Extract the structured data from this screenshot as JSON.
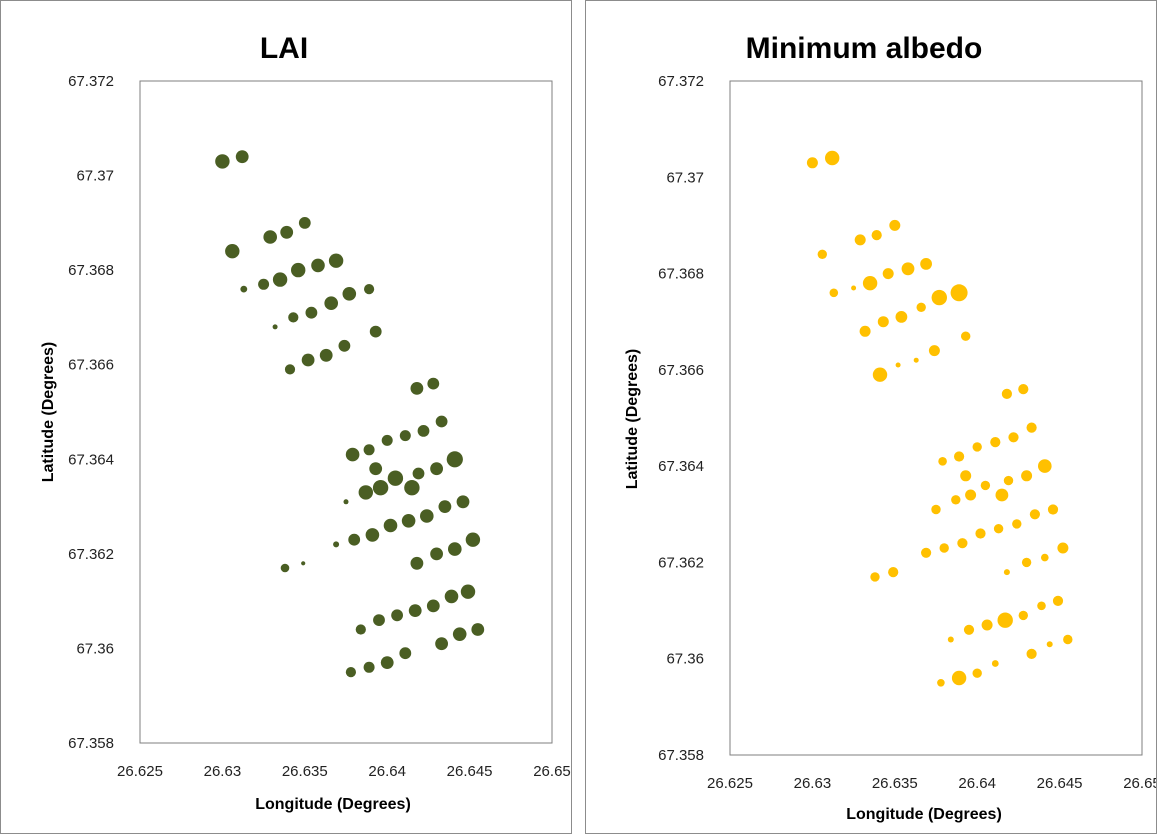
{
  "chart_data": [
    {
      "type": "scatter",
      "title": "LAI",
      "xlabel": "Longitude (Degrees)",
      "ylabel": "Latitude (Degrees)",
      "xlim": [
        26.625,
        26.65
      ],
      "ylim": [
        67.358,
        67.372
      ],
      "xticks": [
        "26.625",
        "26.63",
        "26.635",
        "26.64",
        "26.645",
        "26.65"
      ],
      "yticks": [
        "67.358",
        "67.36",
        "67.362",
        "67.364",
        "67.366",
        "67.368",
        "67.37",
        "67.372"
      ],
      "grid": false,
      "color": "#4a5e23",
      "points": [
        {
          "x": 26.63,
          "y": 67.3703,
          "size": 0.85
        },
        {
          "x": 26.6312,
          "y": 67.3704,
          "size": 0.75
        },
        {
          "x": 26.6306,
          "y": 67.3684,
          "size": 0.85
        },
        {
          "x": 26.6329,
          "y": 67.3687,
          "size": 0.8
        },
        {
          "x": 26.6339,
          "y": 67.3688,
          "size": 0.75
        },
        {
          "x": 26.635,
          "y": 67.369,
          "size": 0.7
        },
        {
          "x": 26.6313,
          "y": 67.3676,
          "size": 0.4
        },
        {
          "x": 26.6325,
          "y": 67.3677,
          "size": 0.65
        },
        {
          "x": 26.6335,
          "y": 67.3678,
          "size": 0.85
        },
        {
          "x": 26.6346,
          "y": 67.368,
          "size": 0.85
        },
        {
          "x": 26.6358,
          "y": 67.3681,
          "size": 0.8
        },
        {
          "x": 26.6369,
          "y": 67.3682,
          "size": 0.85
        },
        {
          "x": 26.6332,
          "y": 67.3668,
          "size": 0.3
        },
        {
          "x": 26.6343,
          "y": 67.367,
          "size": 0.6
        },
        {
          "x": 26.6354,
          "y": 67.3671,
          "size": 0.7
        },
        {
          "x": 26.6366,
          "y": 67.3673,
          "size": 0.8
        },
        {
          "x": 26.6377,
          "y": 67.3675,
          "size": 0.8
        },
        {
          "x": 26.6389,
          "y": 67.3676,
          "size": 0.6
        },
        {
          "x": 26.6393,
          "y": 67.3667,
          "size": 0.7
        },
        {
          "x": 26.6341,
          "y": 67.3659,
          "size": 0.6
        },
        {
          "x": 26.6352,
          "y": 67.3661,
          "size": 0.75
        },
        {
          "x": 26.6363,
          "y": 67.3662,
          "size": 0.75
        },
        {
          "x": 26.6374,
          "y": 67.3664,
          "size": 0.7
        },
        {
          "x": 26.6418,
          "y": 67.3655,
          "size": 0.75
        },
        {
          "x": 26.6428,
          "y": 67.3656,
          "size": 0.7
        },
        {
          "x": 26.6379,
          "y": 67.3641,
          "size": 0.8
        },
        {
          "x": 26.6389,
          "y": 67.3642,
          "size": 0.65
        },
        {
          "x": 26.64,
          "y": 67.3644,
          "size": 0.65
        },
        {
          "x": 26.6411,
          "y": 67.3645,
          "size": 0.65
        },
        {
          "x": 26.6422,
          "y": 67.3646,
          "size": 0.7
        },
        {
          "x": 26.6433,
          "y": 67.3648,
          "size": 0.7
        },
        {
          "x": 26.6393,
          "y": 67.3638,
          "size": 0.75
        },
        {
          "x": 26.6419,
          "y": 67.3637,
          "size": 0.7
        },
        {
          "x": 26.643,
          "y": 67.3638,
          "size": 0.75
        },
        {
          "x": 26.6441,
          "y": 67.364,
          "size": 0.95
        },
        {
          "x": 26.6375,
          "y": 67.3631,
          "size": 0.3
        },
        {
          "x": 26.6387,
          "y": 67.3633,
          "size": 0.85
        },
        {
          "x": 26.6396,
          "y": 67.3634,
          "size": 0.9
        },
        {
          "x": 26.6405,
          "y": 67.3636,
          "size": 0.9
        },
        {
          "x": 26.6415,
          "y": 67.3634,
          "size": 0.9
        },
        {
          "x": 26.6369,
          "y": 67.3622,
          "size": 0.35
        },
        {
          "x": 26.638,
          "y": 67.3623,
          "size": 0.7
        },
        {
          "x": 26.6391,
          "y": 67.3624,
          "size": 0.8
        },
        {
          "x": 26.6402,
          "y": 67.3626,
          "size": 0.8
        },
        {
          "x": 26.6413,
          "y": 67.3627,
          "size": 0.8
        },
        {
          "x": 26.6424,
          "y": 67.3628,
          "size": 0.8
        },
        {
          "x": 26.6435,
          "y": 67.363,
          "size": 0.75
        },
        {
          "x": 26.6446,
          "y": 67.3631,
          "size": 0.75
        },
        {
          "x": 26.6418,
          "y": 67.3618,
          "size": 0.75
        },
        {
          "x": 26.643,
          "y": 67.362,
          "size": 0.75
        },
        {
          "x": 26.6441,
          "y": 67.3621,
          "size": 0.8
        },
        {
          "x": 26.6452,
          "y": 67.3623,
          "size": 0.85
        },
        {
          "x": 26.6338,
          "y": 67.3617,
          "size": 0.5
        },
        {
          "x": 26.6349,
          "y": 67.3618,
          "size": 0.25
        },
        {
          "x": 26.6384,
          "y": 67.3604,
          "size": 0.6
        },
        {
          "x": 26.6395,
          "y": 67.3606,
          "size": 0.7
        },
        {
          "x": 26.6406,
          "y": 67.3607,
          "size": 0.7
        },
        {
          "x": 26.6417,
          "y": 67.3608,
          "size": 0.75
        },
        {
          "x": 26.6428,
          "y": 67.3609,
          "size": 0.75
        },
        {
          "x": 26.6439,
          "y": 67.3611,
          "size": 0.8
        },
        {
          "x": 26.6449,
          "y": 67.3612,
          "size": 0.85
        },
        {
          "x": 26.6378,
          "y": 67.3595,
          "size": 0.6
        },
        {
          "x": 26.6389,
          "y": 67.3596,
          "size": 0.65
        },
        {
          "x": 26.64,
          "y": 67.3597,
          "size": 0.75
        },
        {
          "x": 26.6411,
          "y": 67.3599,
          "size": 0.7
        },
        {
          "x": 26.6433,
          "y": 67.3601,
          "size": 0.75
        },
        {
          "x": 26.6444,
          "y": 67.3603,
          "size": 0.8
        },
        {
          "x": 26.6455,
          "y": 67.3604,
          "size": 0.75
        }
      ]
    },
    {
      "type": "scatter",
      "title": "Minimum albedo",
      "xlabel": "Longitude (Degrees)",
      "ylabel": "Latitude (Degrees)",
      "xlim": [
        26.625,
        26.65
      ],
      "ylim": [
        67.358,
        67.372
      ],
      "xticks": [
        "26.625",
        "26.63",
        "26.635",
        "26.64",
        "26.645",
        "26.65"
      ],
      "yticks": [
        "67.358",
        "67.36",
        "67.362",
        "67.364",
        "67.366",
        "67.368",
        "67.37",
        "67.372"
      ],
      "grid": false,
      "color": "#ffc000",
      "points": [
        {
          "x": 26.63,
          "y": 67.3703,
          "size": 0.65
        },
        {
          "x": 26.6312,
          "y": 67.3704,
          "size": 0.85
        },
        {
          "x": 26.6306,
          "y": 67.3684,
          "size": 0.55
        },
        {
          "x": 26.6329,
          "y": 67.3687,
          "size": 0.65
        },
        {
          "x": 26.6339,
          "y": 67.3688,
          "size": 0.6
        },
        {
          "x": 26.635,
          "y": 67.369,
          "size": 0.65
        },
        {
          "x": 26.6313,
          "y": 67.3676,
          "size": 0.5
        },
        {
          "x": 26.6325,
          "y": 67.3677,
          "size": 0.3
        },
        {
          "x": 26.6335,
          "y": 67.3678,
          "size": 0.85
        },
        {
          "x": 26.6346,
          "y": 67.368,
          "size": 0.65
        },
        {
          "x": 26.6358,
          "y": 67.3681,
          "size": 0.75
        },
        {
          "x": 26.6369,
          "y": 67.3682,
          "size": 0.7
        },
        {
          "x": 26.6332,
          "y": 67.3668,
          "size": 0.65
        },
        {
          "x": 26.6343,
          "y": 67.367,
          "size": 0.65
        },
        {
          "x": 26.6354,
          "y": 67.3671,
          "size": 0.7
        },
        {
          "x": 26.6366,
          "y": 67.3673,
          "size": 0.55
        },
        {
          "x": 26.6377,
          "y": 67.3675,
          "size": 0.9
        },
        {
          "x": 26.6389,
          "y": 67.3676,
          "size": 1.0
        },
        {
          "x": 26.6393,
          "y": 67.3667,
          "size": 0.55
        },
        {
          "x": 26.6341,
          "y": 67.3659,
          "size": 0.85
        },
        {
          "x": 26.6352,
          "y": 67.3661,
          "size": 0.3
        },
        {
          "x": 26.6363,
          "y": 67.3662,
          "size": 0.3
        },
        {
          "x": 26.6374,
          "y": 67.3664,
          "size": 0.65
        },
        {
          "x": 26.6418,
          "y": 67.3655,
          "size": 0.6
        },
        {
          "x": 26.6428,
          "y": 67.3656,
          "size": 0.6
        },
        {
          "x": 26.6379,
          "y": 67.3641,
          "size": 0.5
        },
        {
          "x": 26.6389,
          "y": 67.3642,
          "size": 0.6
        },
        {
          "x": 26.64,
          "y": 67.3644,
          "size": 0.55
        },
        {
          "x": 26.6411,
          "y": 67.3645,
          "size": 0.6
        },
        {
          "x": 26.6422,
          "y": 67.3646,
          "size": 0.6
        },
        {
          "x": 26.6433,
          "y": 67.3648,
          "size": 0.6
        },
        {
          "x": 26.6393,
          "y": 67.3638,
          "size": 0.65
        },
        {
          "x": 26.6419,
          "y": 67.3637,
          "size": 0.55
        },
        {
          "x": 26.643,
          "y": 67.3638,
          "size": 0.65
        },
        {
          "x": 26.6441,
          "y": 67.364,
          "size": 0.8
        },
        {
          "x": 26.6375,
          "y": 67.3631,
          "size": 0.55
        },
        {
          "x": 26.6387,
          "y": 67.3633,
          "size": 0.55
        },
        {
          "x": 26.6396,
          "y": 67.3634,
          "size": 0.65
        },
        {
          "x": 26.6405,
          "y": 67.3636,
          "size": 0.55
        },
        {
          "x": 26.6415,
          "y": 67.3634,
          "size": 0.75
        },
        {
          "x": 26.6369,
          "y": 67.3622,
          "size": 0.6
        },
        {
          "x": 26.638,
          "y": 67.3623,
          "size": 0.55
        },
        {
          "x": 26.6391,
          "y": 67.3624,
          "size": 0.6
        },
        {
          "x": 26.6402,
          "y": 67.3626,
          "size": 0.6
        },
        {
          "x": 26.6413,
          "y": 67.3627,
          "size": 0.55
        },
        {
          "x": 26.6424,
          "y": 67.3628,
          "size": 0.55
        },
        {
          "x": 26.6435,
          "y": 67.363,
          "size": 0.6
        },
        {
          "x": 26.6446,
          "y": 67.3631,
          "size": 0.6
        },
        {
          "x": 26.6418,
          "y": 67.3618,
          "size": 0.35
        },
        {
          "x": 26.643,
          "y": 67.362,
          "size": 0.55
        },
        {
          "x": 26.6441,
          "y": 67.3621,
          "size": 0.45
        },
        {
          "x": 26.6452,
          "y": 67.3623,
          "size": 0.65
        },
        {
          "x": 26.6338,
          "y": 67.3617,
          "size": 0.55
        },
        {
          "x": 26.6349,
          "y": 67.3618,
          "size": 0.6
        },
        {
          "x": 26.6384,
          "y": 67.3604,
          "size": 0.35
        },
        {
          "x": 26.6395,
          "y": 67.3606,
          "size": 0.6
        },
        {
          "x": 26.6406,
          "y": 67.3607,
          "size": 0.65
        },
        {
          "x": 26.6417,
          "y": 67.3608,
          "size": 0.9
        },
        {
          "x": 26.6428,
          "y": 67.3609,
          "size": 0.55
        },
        {
          "x": 26.6439,
          "y": 67.3611,
          "size": 0.5
        },
        {
          "x": 26.6449,
          "y": 67.3612,
          "size": 0.6
        },
        {
          "x": 26.6378,
          "y": 67.3595,
          "size": 0.45
        },
        {
          "x": 26.6389,
          "y": 67.3596,
          "size": 0.85
        },
        {
          "x": 26.64,
          "y": 67.3597,
          "size": 0.55
        },
        {
          "x": 26.6411,
          "y": 67.3599,
          "size": 0.4
        },
        {
          "x": 26.6433,
          "y": 67.3601,
          "size": 0.6
        },
        {
          "x": 26.6444,
          "y": 67.3603,
          "size": 0.35
        },
        {
          "x": 26.6455,
          "y": 67.3604,
          "size": 0.55
        }
      ]
    }
  ]
}
